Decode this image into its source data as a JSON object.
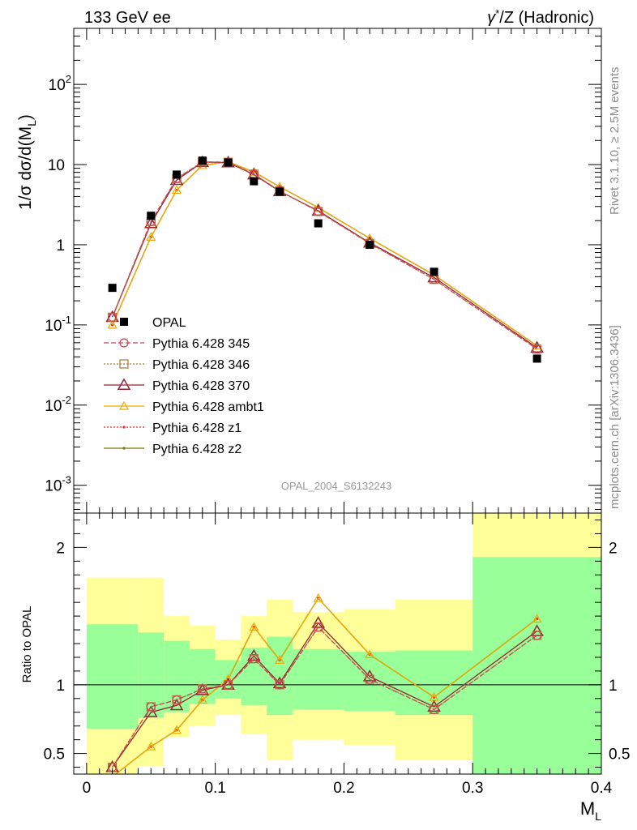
{
  "header": {
    "left": "133 GeV ee",
    "right_sup_base": "γ",
    "right_sup": "*",
    "right_rest": "/Z (Hadronic)"
  },
  "side_labels": {
    "rivet": "Rivet 3.1.10, ≥ 2.5M events",
    "mcplots": "mcplots.cern.ch [arXiv:1306.3436]"
  },
  "analysis_id": "OPAL_2004_S6132243",
  "colors": {
    "data": "#000000",
    "p345": "#cc4455",
    "p346": "#aa7733",
    "p370": "#992233",
    "ambt1": "#eeaa00",
    "z1": "#ee2222",
    "z2": "#777700",
    "band_inner": "#99ff99",
    "band_outer": "#ffff99"
  },
  "chart_data": [
    {
      "type": "scatter",
      "role": "main",
      "ylabel": "1/σ dσ/d(M_L)",
      "ylog": true,
      "ylim": [
        0.00045,
        500
      ],
      "xlim": [
        -0.01,
        0.4
      ],
      "y_ticks": [
        {
          "v": 0.001,
          "base": "10",
          "exp": "-3"
        },
        {
          "v": 0.01,
          "base": "10",
          "exp": "-2"
        },
        {
          "v": 0.1,
          "base": "10",
          "exp": "-1"
        },
        {
          "v": 1,
          "base": "1",
          "exp": ""
        },
        {
          "v": 10,
          "base": "10",
          "exp": ""
        },
        {
          "v": 100,
          "base": "10",
          "exp": "2"
        }
      ],
      "data": {
        "name": "OPAL",
        "x": [
          0.02,
          0.05,
          0.07,
          0.09,
          0.11,
          0.13,
          0.15,
          0.18,
          0.22,
          0.27,
          0.35
        ],
        "y": [
          0.29,
          2.3,
          7.5,
          11.2,
          10.6,
          6.2,
          4.6,
          1.85,
          1.0,
          0.46,
          0.038
        ]
      },
      "series": [
        {
          "name": "Pythia 6.428 345",
          "key": "p345",
          "marker": "circle",
          "dash": "6,3",
          "x": [
            0.02,
            0.05,
            0.07,
            0.09,
            0.11,
            0.13,
            0.15,
            0.18,
            0.22,
            0.27,
            0.35
          ],
          "y": [
            0.125,
            1.95,
            6.7,
            10.8,
            10.7,
            7.6,
            4.7,
            2.6,
            1.04,
            0.37,
            0.05
          ]
        },
        {
          "name": "Pythia 6.428 346",
          "key": "p346",
          "marker": "square",
          "dash": "2,2",
          "x": [
            0.02,
            0.05,
            0.07,
            0.09,
            0.11,
            0.13,
            0.15,
            0.18,
            0.22,
            0.27,
            0.35
          ],
          "y": [
            0.125,
            1.95,
            6.7,
            10.8,
            10.7,
            7.6,
            4.7,
            2.6,
            1.04,
            0.37,
            0.05
          ]
        },
        {
          "name": "Pythia 6.428 370",
          "key": "p370",
          "marker": "triangle-big",
          "dash": "",
          "x": [
            0.02,
            0.05,
            0.07,
            0.09,
            0.11,
            0.13,
            0.15,
            0.18,
            0.22,
            0.27,
            0.35
          ],
          "y": [
            0.125,
            1.85,
            6.4,
            10.7,
            10.6,
            7.5,
            4.65,
            2.65,
            1.06,
            0.39,
            0.052
          ]
        },
        {
          "name": "Pythia 6.428 ambt1",
          "key": "ambt1",
          "marker": "triangle",
          "dash": "",
          "x": [
            0.02,
            0.05,
            0.07,
            0.09,
            0.11,
            0.13,
            0.15,
            0.18,
            0.22,
            0.27,
            0.35
          ],
          "y": [
            0.1,
            1.25,
            4.8,
            9.8,
            10.8,
            8.1,
            5.3,
            2.9,
            1.2,
            0.42,
            0.055
          ]
        },
        {
          "name": "Pythia 6.428 z1",
          "key": "z1",
          "marker": "dot",
          "dash": "2,2",
          "x": [
            0.02,
            0.05,
            0.07,
            0.09,
            0.11,
            0.13,
            0.15,
            0.18,
            0.22,
            0.27,
            0.35
          ],
          "y": [
            0.1,
            1.25,
            4.8,
            9.8,
            10.8,
            8.1,
            5.3,
            2.9,
            1.2,
            0.42,
            0.055
          ]
        },
        {
          "name": "Pythia 6.428 z2",
          "key": "z2",
          "marker": "dot",
          "dash": "",
          "x": [
            0.02,
            0.05,
            0.07,
            0.09,
            0.11,
            0.13,
            0.15,
            0.18,
            0.22,
            0.27,
            0.35
          ],
          "y": [
            0.1,
            1.25,
            4.8,
            9.8,
            10.8,
            8.1,
            5.3,
            2.9,
            1.2,
            0.42,
            0.055
          ]
        }
      ]
    },
    {
      "type": "line",
      "role": "ratio",
      "ylabel": "Ratio to OPAL",
      "ylim": [
        0.35,
        2.25
      ],
      "xlim": [
        -0.01,
        0.4
      ],
      "y_ticks": [
        0.5,
        1,
        2
      ],
      "y_tick_labels": [
        "0.5",
        "1",
        "2"
      ],
      "x_ticks": [
        0,
        0.1,
        0.2,
        0.3,
        0.4
      ],
      "x_tick_labels": [
        "0",
        "0.1",
        "0.2",
        "0.3",
        "0.4"
      ],
      "xlabel_base": "M",
      "xlabel_sub": "L",
      "bands": [
        {
          "x0": 0.0,
          "x1": 0.04,
          "inner": [
            0.68,
            1.44
          ],
          "outer": [
            0.3,
            1.78
          ]
        },
        {
          "x0": 0.04,
          "x1": 0.06,
          "inner": [
            0.76,
            1.38
          ],
          "outer": [
            0.41,
            1.78
          ]
        },
        {
          "x0": 0.06,
          "x1": 0.08,
          "inner": [
            0.8,
            1.32
          ],
          "outer": [
            0.62,
            1.5
          ]
        },
        {
          "x0": 0.08,
          "x1": 0.1,
          "inner": [
            0.86,
            1.26
          ],
          "outer": [
            0.7,
            1.43
          ]
        },
        {
          "x0": 0.1,
          "x1": 0.12,
          "inner": [
            0.9,
            1.18
          ],
          "outer": [
            0.78,
            1.33
          ]
        },
        {
          "x0": 0.12,
          "x1": 0.14,
          "inner": [
            0.85,
            1.27
          ],
          "outer": [
            0.64,
            1.5
          ]
        },
        {
          "x0": 0.14,
          "x1": 0.16,
          "inner": [
            0.78,
            1.35
          ],
          "outer": [
            0.45,
            1.62
          ]
        },
        {
          "x0": 0.16,
          "x1": 0.2,
          "inner": [
            0.82,
            1.26
          ],
          "outer": [
            0.6,
            1.53
          ]
        },
        {
          "x0": 0.2,
          "x1": 0.24,
          "inner": [
            0.81,
            1.24
          ],
          "outer": [
            0.56,
            1.55
          ]
        },
        {
          "x0": 0.24,
          "x1": 0.3,
          "inner": [
            0.78,
            1.25
          ],
          "outer": [
            0.45,
            1.62
          ]
        },
        {
          "x0": 0.3,
          "x1": 0.4,
          "inner": [
            0.35,
            1.93
          ],
          "outer": [
            0.35,
            2.25
          ]
        }
      ],
      "series": [
        {
          "name": "Pythia 6.428 345",
          "key": "p345",
          "marker": "circle",
          "dash": "6,3",
          "x": [
            0.02,
            0.05,
            0.07,
            0.09,
            0.11,
            0.13,
            0.15,
            0.18,
            0.22,
            0.27,
            0.35
          ],
          "y": [
            0.4,
            0.84,
            0.89,
            0.97,
            1.0,
            1.19,
            1.0,
            1.42,
            1.04,
            0.82,
            1.36
          ]
        },
        {
          "name": "Pythia 6.428 346",
          "key": "p346",
          "marker": "square",
          "dash": "2,2",
          "x": [
            0.02,
            0.05,
            0.07,
            0.09,
            0.11,
            0.13,
            0.15,
            0.18,
            0.22,
            0.27,
            0.35
          ],
          "y": [
            0.4,
            0.84,
            0.89,
            0.97,
            1.0,
            1.19,
            1.0,
            1.42,
            1.04,
            0.82,
            1.36
          ]
        },
        {
          "name": "Pythia 6.428 370",
          "key": "p370",
          "marker": "triangle-big",
          "dash": "",
          "x": [
            0.02,
            0.05,
            0.07,
            0.09,
            0.11,
            0.13,
            0.15,
            0.18,
            0.22,
            0.27,
            0.35
          ],
          "y": [
            0.4,
            0.8,
            0.85,
            0.96,
            1.0,
            1.21,
            1.01,
            1.45,
            1.06,
            0.84,
            1.39
          ]
        },
        {
          "name": "Pythia 6.428 ambt1",
          "key": "ambt1",
          "marker": "triangle",
          "dash": "",
          "x": [
            0.02,
            0.05,
            0.07,
            0.09,
            0.11,
            0.13,
            0.15,
            0.18,
            0.22,
            0.27,
            0.35
          ],
          "y": [
            0.33,
            0.55,
            0.67,
            0.89,
            1.04,
            1.42,
            1.18,
            1.63,
            1.22,
            0.91,
            1.48
          ]
        },
        {
          "name": "Pythia 6.428 z1",
          "key": "z1",
          "marker": "dot",
          "dash": "2,2",
          "x": [
            0.02,
            0.05,
            0.07,
            0.09,
            0.11,
            0.13,
            0.15,
            0.18,
            0.22,
            0.27,
            0.35
          ],
          "y": [
            0.33,
            0.55,
            0.67,
            0.89,
            1.04,
            1.42,
            1.18,
            1.63,
            1.22,
            0.91,
            1.48
          ]
        },
        {
          "name": "Pythia 6.428 z2",
          "key": "z2",
          "marker": "dot",
          "dash": "",
          "x": [
            0.02,
            0.05,
            0.07,
            0.09,
            0.11,
            0.13,
            0.15,
            0.18,
            0.22,
            0.27,
            0.35
          ],
          "y": [
            0.33,
            0.55,
            0.67,
            0.89,
            1.04,
            1.42,
            1.18,
            1.63,
            1.22,
            0.91,
            1.48
          ]
        }
      ]
    }
  ]
}
